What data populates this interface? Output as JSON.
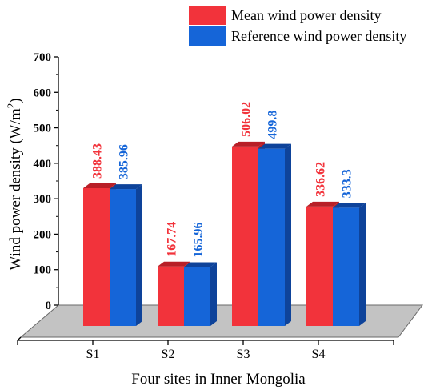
{
  "chart_data": {
    "type": "bar",
    "categories": [
      "S1",
      "S2",
      "S3",
      "S4"
    ],
    "series": [
      {
        "name": "Mean wind power density",
        "values": [
          388.43,
          167.74,
          506.02,
          336.62
        ],
        "labels": [
          "388.43",
          "167.74",
          "506.02",
          "336.62"
        ],
        "color": "#f2333b",
        "color_dark": "#b81f27"
      },
      {
        "name": "Reference wind power density",
        "values": [
          385.96,
          165.96,
          499.8,
          333.3
        ],
        "labels": [
          "385.96",
          "165.96",
          "499.8",
          "333.3"
        ],
        "color": "#1565d8",
        "color_dark": "#0e439a"
      }
    ],
    "xlabel": "Four sites in Inner Mongolia",
    "ylabel_main": "Wind power density (W/m",
    "ylabel_sup": "2",
    "ylabel_close": ")",
    "ylim": [
      0,
      700
    ],
    "yticks": [
      0,
      100,
      200,
      300,
      400,
      500,
      600,
      700
    ],
    "ytick_labels": [
      "0",
      "100",
      "200",
      "300",
      "400",
      "500",
      "600",
      "700"
    ],
    "grid": false,
    "legend_position": "top-right",
    "floor_color": "#c3c3c3"
  }
}
